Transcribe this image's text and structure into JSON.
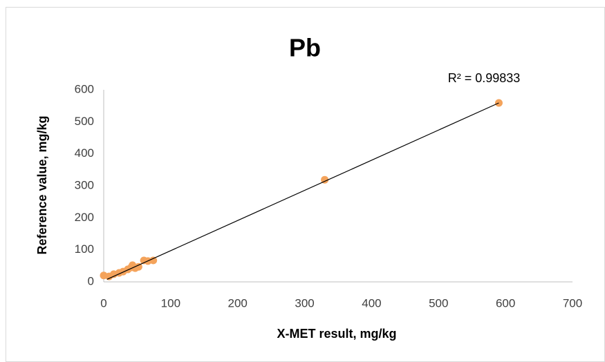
{
  "chart_data": {
    "type": "scatter",
    "title": "Pb",
    "x_label": "X-MET result, mg/kg",
    "y_label": "Reference value, mg/kg",
    "annotation": "R² = 0.99833",
    "series": [
      {
        "color": "#f4a35b",
        "x": [
          0,
          8,
          15,
          23,
          29,
          36,
          41,
          43,
          47,
          52,
          60,
          66,
          74,
          330,
          590
        ],
        "values": [
          20,
          17,
          24,
          28,
          32,
          39,
          45,
          52,
          43,
          47,
          67,
          65,
          67,
          319,
          559
        ]
      }
    ],
    "trendline": {
      "color": "#000000",
      "x": [
        5,
        590
      ],
      "values": [
        8,
        559
      ]
    },
    "xlim": [
      0,
      700
    ],
    "xticks": [
      0,
      100,
      200,
      300,
      400,
      500,
      600,
      700
    ],
    "ylim": [
      0,
      600
    ],
    "yticks": [
      0,
      100,
      200,
      300,
      400,
      500,
      600
    ],
    "grid": false
  }
}
